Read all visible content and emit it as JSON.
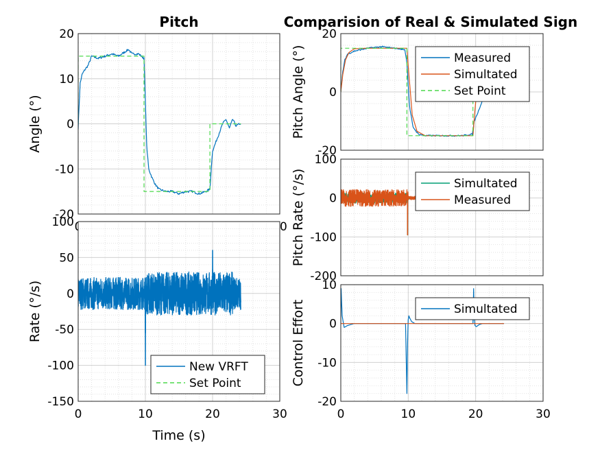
{
  "chart_data": [
    {
      "id": "pitch-angle",
      "type": "line",
      "title": "Pitch",
      "xlabel": "",
      "ylabel": "Angle (°)",
      "xlim": [
        0,
        30
      ],
      "ylim": [
        -20,
        20
      ],
      "xticks": [
        "0",
        "10",
        "20",
        "30"
      ],
      "yticks": [
        "20",
        "10",
        "0",
        "-10",
        "-20"
      ],
      "grid": true,
      "legend": "none",
      "colors": {
        "measured": "#0072BD",
        "setpoint": "#4CD94C"
      },
      "series": [
        {
          "role": "measured",
          "x": [
            0,
            0.1,
            0.3,
            0.6,
            1.0,
            1.5,
            2,
            3,
            4,
            5,
            6,
            7,
            7.5,
            8,
            9,
            9.8,
            10.0,
            10.2,
            10.5,
            11,
            11.5,
            12,
            13,
            14,
            15,
            16,
            17,
            18,
            19,
            19.6,
            19.8,
            20.0,
            20.5,
            21,
            21.5,
            22,
            22.5,
            23,
            23.5,
            24,
            24.2
          ],
          "y": [
            -1,
            3,
            9,
            11,
            12,
            13,
            15,
            14.5,
            15,
            15.5,
            15,
            16,
            16.5,
            15.5,
            15.5,
            14.5,
            5,
            -5,
            -10,
            -12,
            -13.5,
            -14.5,
            -15,
            -15,
            -15.5,
            -15,
            -15,
            -15.5,
            -15,
            -14.5,
            -10,
            -6,
            -4,
            -2,
            0,
            1,
            -1,
            1,
            -0.5,
            0,
            0
          ]
        },
        {
          "role": "setpoint",
          "x": [
            0,
            0,
            9.8,
            9.8,
            19.6,
            19.6,
            24.2
          ],
          "y": [
            0,
            15,
            15,
            -15,
            -15,
            0,
            0
          ]
        }
      ]
    },
    {
      "id": "pitch-rate",
      "type": "line",
      "title": "",
      "xlabel": "Time (s)",
      "ylabel": "Rate (°/s)",
      "xlim": [
        0,
        30
      ],
      "ylim": [
        -150,
        100
      ],
      "xticks": [
        "0",
        "10",
        "20",
        "30"
      ],
      "yticks": [
        "100",
        "50",
        "0",
        "-50",
        "-100",
        "-150"
      ],
      "grid": true,
      "legend": "bottom-right",
      "legend_entries": [
        "New VRFT",
        "Set Point"
      ],
      "colors": {
        "measured": "#0072BD",
        "setpoint": "#4CD94C"
      },
      "x_end": 24.2,
      "noise_amplitude": 25,
      "spikes": [
        {
          "x": 10.0,
          "y": -100
        },
        {
          "x": 20.0,
          "y": 60
        }
      ]
    },
    {
      "id": "comparison-angle",
      "type": "line",
      "title": "Comparision of Real & Simulated Sign",
      "xlabel": "",
      "ylabel": "Pitch Angle (°)",
      "xlim": [
        0,
        30
      ],
      "ylim": [
        -20,
        20
      ],
      "xticks": [],
      "yticks": [
        "20",
        "0",
        "-20"
      ],
      "grid": true,
      "legend": "top-right",
      "legend_entries": [
        "Measured",
        "Simultated",
        "Set Point"
      ],
      "colors": {
        "measured": "#0072BD",
        "simulated": "#D95319",
        "setpoint": "#4CD94C"
      },
      "series": [
        {
          "role": "measured",
          "x": [
            0,
            0.3,
            0.6,
            1,
            2,
            4,
            6,
            8,
            9.5,
            9.8,
            10.2,
            10.7,
            11.5,
            12.5,
            14,
            16,
            18,
            19.5,
            19.8,
            20.5,
            21,
            21.5
          ],
          "y": [
            0,
            7,
            11,
            13,
            14,
            15,
            15.5,
            15,
            14.5,
            10,
            -5,
            -12,
            -14.5,
            -15,
            -15,
            -15,
            -15,
            -14.5,
            -10,
            -6,
            -3,
            0
          ]
        },
        {
          "role": "simulated",
          "x": [
            0,
            0.3,
            0.7,
            1.2,
            2,
            4,
            9.8,
            10.1,
            10.6,
            11.3,
            12.5,
            19.6,
            19.9,
            20.4,
            21,
            21.5
          ],
          "y": [
            0,
            6,
            11,
            13.5,
            14.8,
            15,
            15,
            6,
            -8,
            -13.5,
            -15,
            -15,
            -6,
            6,
            12,
            14
          ]
        },
        {
          "role": "setpoint",
          "x": [
            0,
            0,
            9.8,
            9.8,
            19.6,
            19.6,
            21.5
          ],
          "y": [
            0,
            15,
            15,
            -15,
            -15,
            0,
            0
          ]
        }
      ]
    },
    {
      "id": "comparison-rate",
      "type": "line",
      "title": "",
      "xlabel": "",
      "ylabel": "Pitch Rate (°/s)",
      "xlim": [
        0,
        30
      ],
      "ylim": [
        -200,
        100
      ],
      "xticks": [],
      "yticks": [
        "100",
        "0",
        "-100",
        "-200"
      ],
      "grid": true,
      "legend": "top-right",
      "legend_entries": [
        "Simultated",
        "Measured"
      ],
      "colors": {
        "simulated": "#009E73",
        "measured": "#D95319"
      },
      "x_end": 24.2,
      "noise_amplitude": 18,
      "spikes": [
        {
          "x": 9.9,
          "y": -95
        }
      ]
    },
    {
      "id": "control-effort",
      "type": "line",
      "title": "",
      "xlabel": "",
      "ylabel": "Control Effort",
      "xlim": [
        0,
        30
      ],
      "ylim": [
        -20,
        10
      ],
      "xticks": [
        "0",
        "10",
        "20",
        "30"
      ],
      "yticks": [
        "10",
        "0",
        "-10",
        "-20"
      ],
      "grid": true,
      "legend": "top-right",
      "legend_entries": [
        "Simultated"
      ],
      "colors": {
        "simulated": "#0072BD",
        "measured": "#D95319"
      },
      "series": [
        {
          "role": "simulated",
          "x": [
            0,
            0.05,
            0.2,
            0.5,
            1,
            2,
            9.6,
            9.8,
            9.9,
            10.0,
            10.1,
            10.2,
            10.5,
            11,
            19.6,
            19.7,
            19.8,
            19.9,
            20.1,
            20.5,
            21,
            24.2
          ],
          "y": [
            0,
            9,
            2,
            -1,
            -0.5,
            0,
            0,
            -18,
            -5,
            1,
            2,
            1.5,
            0.5,
            0,
            0,
            9,
            1,
            -0.5,
            -0.8,
            -0.3,
            0,
            0
          ]
        },
        {
          "role": "measured",
          "x": [
            0,
            24.2
          ],
          "y": [
            0,
            0
          ]
        }
      ]
    }
  ]
}
